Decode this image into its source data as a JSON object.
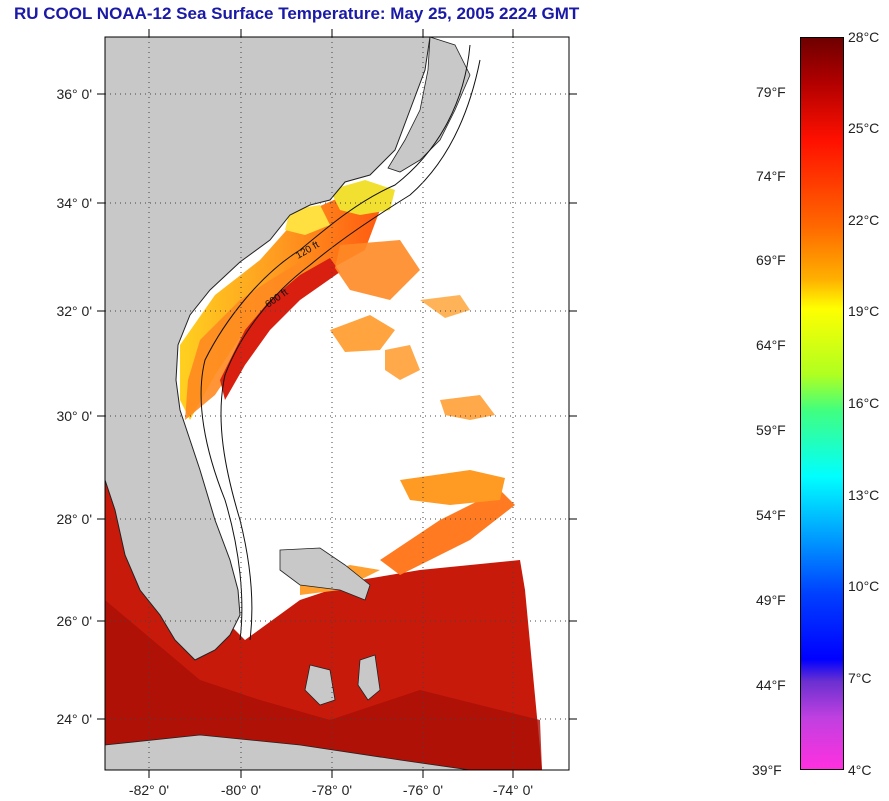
{
  "title": "RU COOL  NOAA-12  Sea Surface Temperature:  May 25, 2005 2224 GMT",
  "latitude_labels": [
    "36° 0'",
    "34° 0'",
    "32° 0'",
    "30° 0'",
    "28° 0'",
    "26° 0'",
    "24° 0'"
  ],
  "longitude_labels": [
    "-82° 0'",
    "-80° 0'",
    "-78° 0'",
    "-76° 0'",
    "-74° 0'"
  ],
  "contour_labels": [
    "120 ft",
    "600 ft"
  ],
  "colorbar": {
    "celsius_labels": [
      "28°C",
      "25°C",
      "22°C",
      "19°C",
      "16°C",
      "13°C",
      "10°C",
      "7°C",
      "4°C"
    ],
    "fahrenheit_labels": [
      "79°F",
      "74°F",
      "69°F",
      "64°F",
      "59°F",
      "54°F",
      "49°F",
      "44°F",
      "39°F"
    ]
  },
  "colors": {
    "land": "#c8c8c8",
    "warm_water": "#c81a0a",
    "title": "#1a1aa6"
  }
}
